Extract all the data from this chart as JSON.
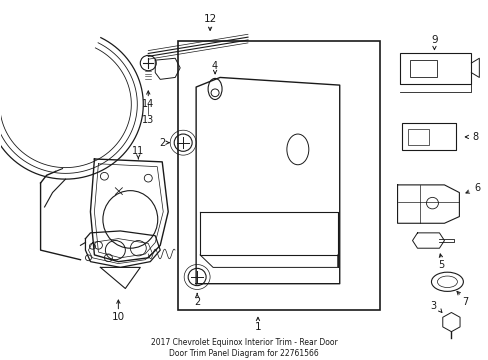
{
  "title": "2017 Chevrolet Equinox Interior Trim - Rear Door\nDoor Trim Panel Diagram for 22761566",
  "background_color": "#ffffff",
  "line_color": "#1a1a1a",
  "figsize": [
    4.89,
    3.6
  ],
  "dpi": 100
}
